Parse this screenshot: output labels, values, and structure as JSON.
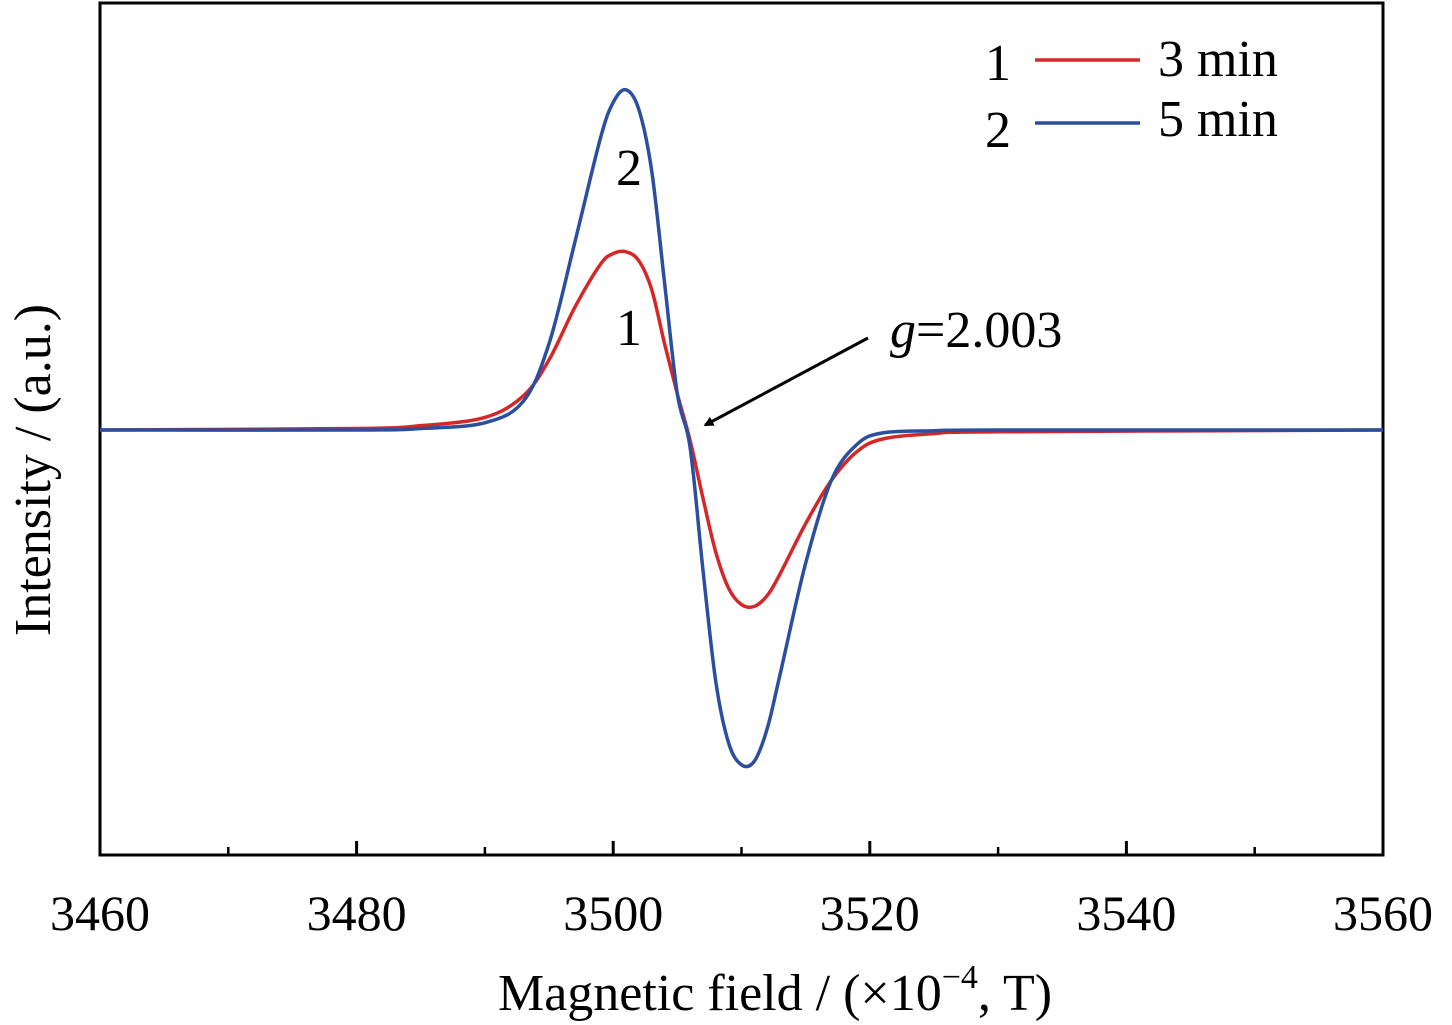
{
  "chart_data": {
    "type": "line",
    "xlabel_main": "Magnetic field / (×10",
    "xlabel_sup": "−4",
    "xlabel_tail": ", T)",
    "ylabel": "Intensity / (a.u.)",
    "xlim": [
      3460,
      3560
    ],
    "ylim": [
      -1.2,
      1.2
    ],
    "x_ticks": [
      3460,
      3480,
      3500,
      3520,
      3540,
      3560
    ],
    "x_tick_labels": [
      "3460",
      "3480",
      "3500",
      "3520",
      "3540",
      "3560"
    ],
    "x_minor_ticks": [
      3470,
      3490,
      3510,
      3530,
      3550
    ],
    "grid": false,
    "legend_position": "top-right",
    "series": [
      {
        "name": "3 min",
        "label": "1",
        "color": "#d62728",
        "x": [
          3460,
          3480,
          3485,
          3490,
          3493,
          3495,
          3497,
          3499,
          3500,
          3501,
          3502,
          3503,
          3504,
          3505,
          3506,
          3507,
          3508,
          3509,
          3510,
          3511,
          3512,
          3513,
          3515,
          3517,
          3519,
          3521,
          3525,
          3530,
          3560
        ],
        "y": [
          0.0,
          0.004,
          0.012,
          0.035,
          0.095,
          0.195,
          0.34,
          0.46,
          0.49,
          0.495,
          0.47,
          0.39,
          0.24,
          0.1,
          -0.03,
          -0.19,
          -0.34,
          -0.44,
          -0.485,
          -0.49,
          -0.46,
          -0.4,
          -0.26,
          -0.14,
          -0.06,
          -0.025,
          -0.01,
          -0.005,
          0.0
        ]
      },
      {
        "name": "5 min",
        "label": "2",
        "color": "#2b4f9e",
        "x": [
          3460,
          3480,
          3485,
          3490,
          3493,
          3495,
          3497,
          3499,
          3500,
          3501,
          3502,
          3503,
          3504,
          3505,
          3506,
          3507,
          3508,
          3509,
          3510,
          3511,
          3512,
          3513,
          3515,
          3517,
          3519,
          3521,
          3525,
          3530,
          3560
        ],
        "y": [
          0.0,
          0.0,
          0.004,
          0.02,
          0.08,
          0.24,
          0.52,
          0.81,
          0.91,
          0.945,
          0.89,
          0.72,
          0.41,
          0.1,
          -0.05,
          -0.39,
          -0.7,
          -0.87,
          -0.93,
          -0.92,
          -0.83,
          -0.68,
          -0.37,
          -0.14,
          -0.04,
          -0.008,
          -0.002,
          0.0,
          0.0
        ]
      }
    ],
    "annotations": [
      {
        "text_italic": "g",
        "text_rest": "=2.003",
        "points_to_x": 3506.4,
        "points_to_y": 0.0
      }
    ]
  }
}
